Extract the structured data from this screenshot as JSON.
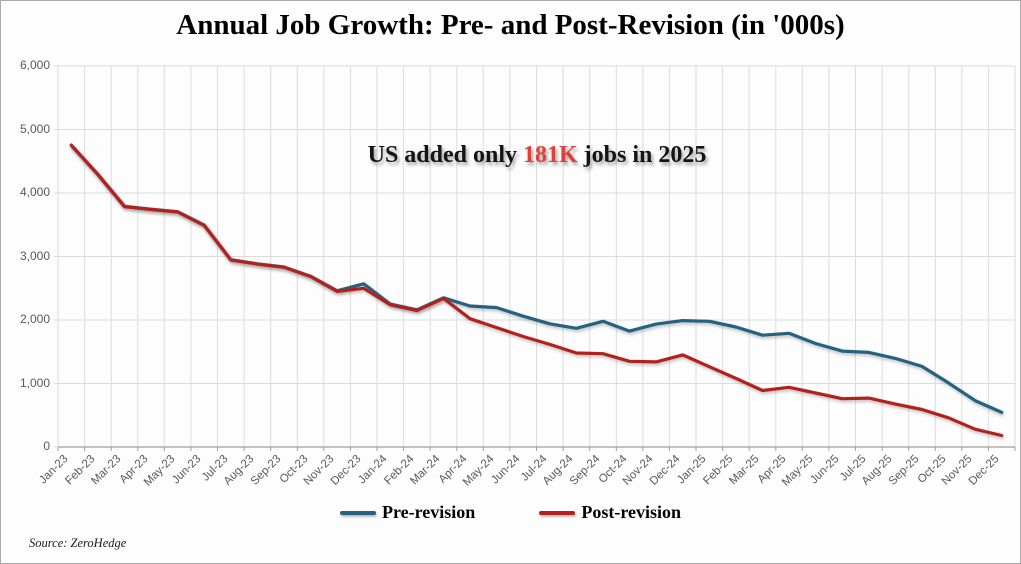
{
  "title": "Annual Job Growth: Pre- and Post-Revision (in '000s)",
  "annotation": {
    "prefix": "US added only ",
    "highlight": "181K",
    "suffix": " jobs in 2025",
    "highlight_color": "#e0403a"
  },
  "source": "Source: ZeroHedge",
  "legend": {
    "items": [
      {
        "label": "Pre-revision",
        "color": "#26617f"
      },
      {
        "label": "Post-revision",
        "color": "#b3211f"
      }
    ],
    "position": "bottom"
  },
  "colors": {
    "pre_revision": "#26617f",
    "post_revision": "#b3211f",
    "highlight_red": "#e0403a",
    "grid": "#dcdcdc",
    "axis": "#a0a0a0",
    "axis_text": "#595959",
    "background": "#fdfdfd"
  },
  "chart_data": {
    "type": "line",
    "title": "Annual Job Growth: Pre- and Post-Revision (in '000s)",
    "xlabel": "",
    "ylabel": "",
    "ylim": [
      0,
      6000
    ],
    "ytick_step": 1000,
    "ytick_labels": [
      "0",
      "1,000",
      "2,000",
      "3,000",
      "4,000",
      "5,000",
      "6,000"
    ],
    "grid": true,
    "legend_position": "bottom",
    "categories": [
      "Jan-23",
      "Feb-23",
      "Mar-23",
      "Apr-23",
      "May-23",
      "Jun-23",
      "Jul-23",
      "Aug-23",
      "Sep-23",
      "Oct-23",
      "Nov-23",
      "Dec-23",
      "Jan-24",
      "Feb-24",
      "Mar-24",
      "Apr-24",
      "May-24",
      "Jun-24",
      "Jul-24",
      "Aug-24",
      "Sep-24",
      "Oct-24",
      "Nov-24",
      "Dec-24",
      "Jan-25",
      "Feb-25",
      "Mar-25",
      "Apr-25",
      "May-25",
      "Jun-25",
      "Jul-25",
      "Aug-25",
      "Sep-25",
      "Oct-25",
      "Nov-25",
      "Dec-25"
    ],
    "series": [
      {
        "name": "Pre-revision",
        "color": "#26617f",
        "values": [
          4755,
          4295,
          3790,
          3745,
          3705,
          3495,
          2950,
          2885,
          2835,
          2690,
          2460,
          2570,
          2250,
          2160,
          2350,
          2220,
          2195,
          2060,
          1940,
          1870,
          1980,
          1825,
          1935,
          1990,
          1980,
          1890,
          1760,
          1790,
          1630,
          1510,
          1490,
          1395,
          1270,
          1010,
          730,
          545
        ]
      },
      {
        "name": "Post-revision",
        "color": "#b3211f",
        "values": [
          4750,
          4290,
          3785,
          3740,
          3700,
          3490,
          2945,
          2880,
          2830,
          2685,
          2450,
          2500,
          2240,
          2150,
          2340,
          2020,
          1880,
          1740,
          1615,
          1480,
          1470,
          1350,
          1340,
          1450,
          1265,
          1080,
          890,
          940,
          850,
          760,
          770,
          675,
          590,
          460,
          280,
          181
        ]
      }
    ]
  }
}
